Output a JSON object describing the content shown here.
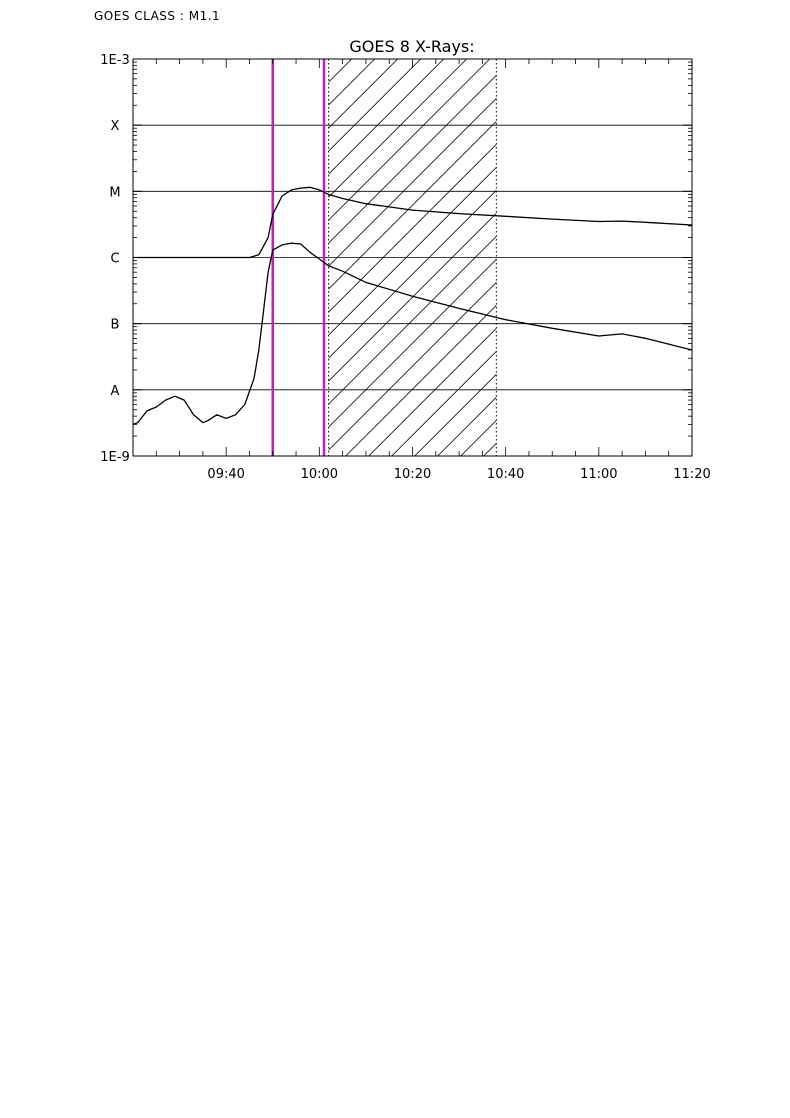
{
  "header": {
    "class_label": "GOES CLASS : M1.1"
  },
  "chart_data": {
    "type": "line",
    "title": "GOES 8 X-Rays:",
    "xlabel": "",
    "ylabel": "",
    "y_scale": "log",
    "ylim": [
      1e-09,
      0.001
    ],
    "x_range": [
      "09:20",
      "11:20"
    ],
    "x_ticks": [
      "09:40",
      "10:00",
      "10:20",
      "10:40",
      "11:00",
      "11:20"
    ],
    "y_ticks": [
      {
        "value": 1e-09,
        "label": "1E-9"
      },
      {
        "value": 1e-08,
        "label": "A"
      },
      {
        "value": 1e-07,
        "label": "B"
      },
      {
        "value": 1e-06,
        "label": "C"
      },
      {
        "value": 1e-05,
        "label": "M"
      },
      {
        "value": 0.0001,
        "label": "X"
      },
      {
        "value": 0.001,
        "label": "1E-3"
      }
    ],
    "grid": "horizontal",
    "series": [
      {
        "color": "#000000",
        "x": [
          "09:20",
          "09:30",
          "09:40",
          "09:45",
          "09:47",
          "09:49",
          "09:50",
          "09:52",
          "09:54",
          "09:56",
          "09:58",
          "10:00",
          "10:02",
          "10:05",
          "10:10",
          "10:20",
          "10:30",
          "10:40",
          "10:50",
          "11:00",
          "11:05",
          "11:10",
          "11:20"
        ],
        "y": [
          1e-06,
          1e-06,
          1e-06,
          1e-06,
          1.1e-06,
          2e-06,
          4.5e-06,
          8.5e-06,
          1.05e-05,
          1.12e-05,
          1.15e-05,
          1.05e-05,
          9e-06,
          7.8e-06,
          6.5e-06,
          5.2e-06,
          4.6e-06,
          4.2e-06,
          3.8e-06,
          3.5e-06,
          3.55e-06,
          3.4e-06,
          3.1e-06
        ]
      },
      {
        "color": "#000000",
        "x": [
          "09:20",
          "09:21",
          "09:23",
          "09:25",
          "09:27",
          "09:29",
          "09:31",
          "09:33",
          "09:35",
          "09:36",
          "09:38",
          "09:40",
          "09:42",
          "09:44",
          "09:46",
          "09:47",
          "09:48",
          "09:49",
          "09:50",
          "09:52",
          "09:54",
          "09:56",
          "09:58",
          "10:00",
          "10:02",
          "10:05",
          "10:10",
          "10:20",
          "10:30",
          "10:40",
          "10:50",
          "11:00",
          "11:05",
          "11:10",
          "11:20"
        ],
        "y": [
          3e-09,
          3.2e-09,
          4.8e-09,
          5.5e-09,
          7e-09,
          8e-09,
          7e-09,
          4.2e-09,
          3.2e-09,
          3.4e-09,
          4.2e-09,
          3.7e-09,
          4.2e-09,
          6e-09,
          1.5e-08,
          4e-08,
          1.5e-07,
          6e-07,
          1.3e-06,
          1.55e-06,
          1.65e-06,
          1.6e-06,
          1.2e-06,
          9.5e-07,
          7.5e-07,
          6.2e-07,
          4.2e-07,
          2.6e-07,
          1.7e-07,
          1.15e-07,
          8.5e-08,
          6.5e-08,
          7e-08,
          6e-08,
          4e-08
        ]
      }
    ],
    "vertical_markers": [
      {
        "x": "09:50",
        "color": "#c020c0",
        "style": "solid"
      },
      {
        "x": "10:01",
        "color": "#c020c0",
        "style": "solid"
      },
      {
        "x": "10:02",
        "color": "#000000",
        "style": "dotted"
      },
      {
        "x": "10:38",
        "color": "#000000",
        "style": "dotted"
      }
    ],
    "shaded_region": {
      "x_start": "10:02",
      "x_end": "10:38",
      "pattern": "diagonal-hatch"
    }
  }
}
